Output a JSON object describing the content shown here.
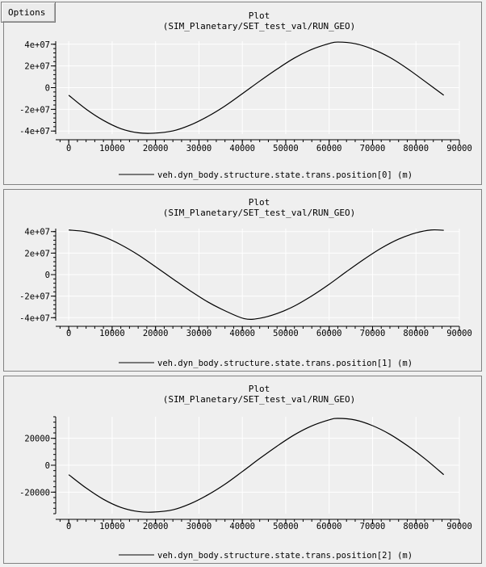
{
  "options_label": "Options",
  "chart_data": [
    {
      "type": "line",
      "title": "Plot",
      "subtitle": "(SIM_Planetary/SET_test_val/RUN_GEO)",
      "xlim": [
        -3000,
        90000
      ],
      "ylim": [
        -42800000,
        42800000
      ],
      "x_ticks": [
        0,
        10000,
        20000,
        30000,
        40000,
        50000,
        60000,
        70000,
        80000,
        90000
      ],
      "x_tick_labels": [
        "0",
        "10000",
        "20000",
        "30000",
        "40000",
        "50000",
        "60000",
        "70000",
        "80000",
        "90000"
      ],
      "y_ticks": [
        40000000,
        20000000,
        0,
        -20000000,
        -40000000
      ],
      "y_tick_labels": [
        "4e+07",
        "2e+07",
        "0",
        "-2e+07",
        "-4e+07"
      ],
      "grid": true,
      "legend_position": "bottom",
      "series": [
        {
          "name": "veh.dyn_body.structure.state.trans.position[0] (m)",
          "color": "#000000",
          "x": [
            0,
            4000,
            8000,
            12000,
            16000,
            19500,
            24000,
            28000,
            32000,
            36000,
            40000,
            44000,
            48000,
            52000,
            56000,
            60000,
            62000,
            66000,
            70000,
            74000,
            78000,
            82000,
            86400
          ],
          "y": [
            -7000000,
            -19800000,
            -30200000,
            -37800000,
            -41600000,
            -42000000,
            -39900000,
            -34500000,
            -26600000,
            -16900000,
            -5600000,
            6000000,
            17100000,
            27300000,
            35200000,
            40600000,
            42000000,
            40500000,
            35500000,
            27800000,
            17600000,
            6000000,
            -7000000
          ]
        }
      ]
    },
    {
      "type": "line",
      "title": "Plot",
      "subtitle": "(SIM_Planetary/SET_test_val/RUN_GEO)",
      "xlim": [
        -3000,
        90000
      ],
      "ylim": [
        -42800000,
        42800000
      ],
      "x_ticks": [
        0,
        10000,
        20000,
        30000,
        40000,
        50000,
        60000,
        70000,
        80000,
        90000
      ],
      "x_tick_labels": [
        "0",
        "10000",
        "20000",
        "30000",
        "40000",
        "50000",
        "60000",
        "70000",
        "80000",
        "90000"
      ],
      "y_ticks": [
        40000000,
        20000000,
        0,
        -20000000,
        -40000000
      ],
      "y_tick_labels": [
        "4e+07",
        "2e+07",
        "0",
        "-2e+07",
        "-4e+07"
      ],
      "grid": true,
      "legend_position": "bottom",
      "series": [
        {
          "name": "veh.dyn_body.structure.state.trans.position[1] (m)",
          "color": "#000000",
          "x": [
            0,
            4000,
            8000,
            12000,
            16000,
            20000,
            24000,
            28000,
            32000,
            36000,
            40500,
            44000,
            48000,
            52000,
            56000,
            60000,
            64000,
            68000,
            72000,
            76000,
            80000,
            83500,
            86400
          ],
          "y": [
            41500000,
            39800000,
            35200000,
            27800000,
            18400000,
            7300000,
            -4000000,
            -15100000,
            -25300000,
            -33600000,
            -41000000,
            -40600000,
            -36200000,
            -29200000,
            -19800000,
            -9000000,
            2800000,
            14200000,
            24600000,
            33000000,
            38800000,
            41500000,
            41200000
          ]
        }
      ]
    },
    {
      "type": "line",
      "title": "Plot",
      "subtitle": "(SIM_Planetary/SET_test_val/RUN_GEO)",
      "xlim": [
        -3000,
        90000
      ],
      "ylim": [
        -36000,
        36000
      ],
      "x_ticks": [
        0,
        10000,
        20000,
        30000,
        40000,
        50000,
        60000,
        70000,
        80000,
        90000
      ],
      "x_tick_labels": [
        "0",
        "10000",
        "20000",
        "30000",
        "40000",
        "50000",
        "60000",
        "70000",
        "80000",
        "90000"
      ],
      "y_ticks": [
        20000,
        0,
        -20000
      ],
      "y_tick_labels": [
        "20000",
        "0",
        "-20000"
      ],
      "grid": true,
      "legend_position": "bottom",
      "series": [
        {
          "name": "veh.dyn_body.structure.state.trans.position[2] (m)",
          "color": "#000000",
          "x": [
            0,
            4000,
            8000,
            12000,
            16000,
            19500,
            24000,
            28000,
            32000,
            36000,
            40000,
            44000,
            48000,
            52000,
            56000,
            60000,
            62000,
            66000,
            70000,
            74000,
            78000,
            82000,
            86400
          ],
          "y": [
            -7000,
            -16900,
            -25300,
            -31300,
            -34400,
            -34800,
            -33100,
            -28600,
            -22100,
            -14100,
            -4700,
            5000,
            14200,
            22600,
            29200,
            33700,
            34800,
            33600,
            29400,
            23000,
            14600,
            5000,
            -7000
          ]
        }
      ]
    }
  ]
}
